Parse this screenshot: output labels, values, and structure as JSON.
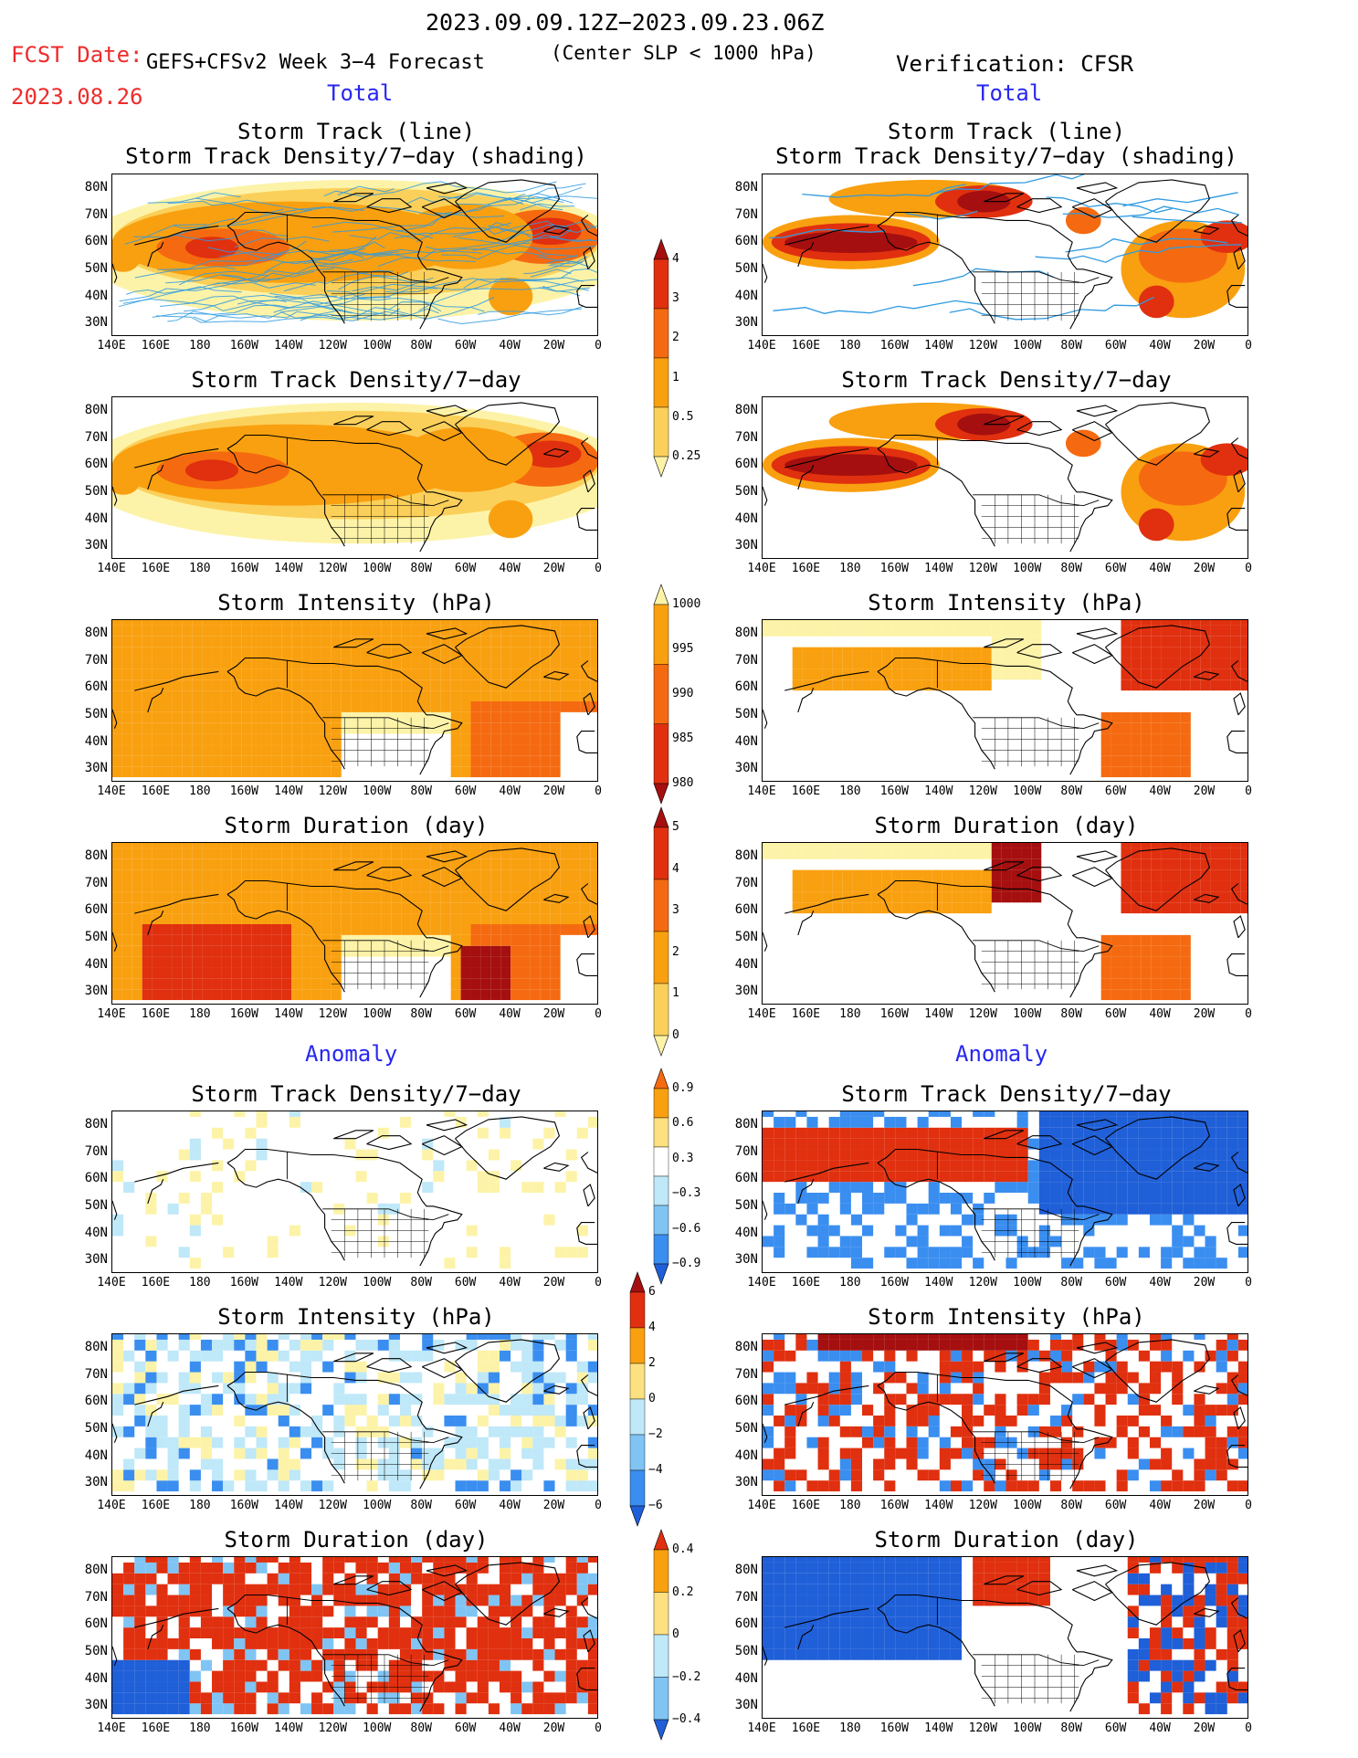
{
  "header": {
    "period": "2023.09.09.12Z−2023.09.23.06Z",
    "fcst_label": "FCST Date:",
    "fcst_date": "2023.08.26",
    "model": "GEFS+CFSv2 Week 3−4 Forecast",
    "criterion": "(Center SLP < 1000 hPa)",
    "verification": "Verification: CFSR"
  },
  "sections": {
    "total": "Total",
    "anomaly": "Anomaly"
  },
  "panel_titles": {
    "track_line": "Storm Track (line)",
    "track_shade": "Storm Track Density/7−day (shading)",
    "density": "Storm Track Density/7−day",
    "intensity": "Storm Intensity (hPa)",
    "duration": "Storm Duration (day)"
  },
  "axes": {
    "lat_labels": [
      "80N",
      "70N",
      "60N",
      "50N",
      "40N",
      "30N"
    ],
    "lon_labels": [
      "140E",
      "160E",
      "180",
      "160W",
      "140W",
      "120W",
      "100W",
      "80W",
      "60W",
      "40W",
      "20W",
      "0"
    ]
  },
  "colorbars": {
    "density_total": {
      "labels": [
        "4",
        "3",
        "2",
        "1",
        "0.5",
        "0.25"
      ],
      "colors": [
        "#a50f0f",
        "#e0300f",
        "#f56a10",
        "#f9a010",
        "#fbd05a",
        "#fdf3a8"
      ]
    },
    "intensity_total": {
      "labels": [
        "1000",
        "995",
        "990",
        "985",
        "980"
      ],
      "colors": [
        "#fdf3a8",
        "#f9a010",
        "#f56a10",
        "#e0300f",
        "#a50f0f"
      ]
    },
    "duration_total": {
      "labels": [
        "5",
        "4",
        "3",
        "2",
        "1",
        "0"
      ],
      "colors": [
        "#a50f0f",
        "#e0300f",
        "#f56a10",
        "#f9a010",
        "#fbd05a",
        "#fdf3a8"
      ]
    },
    "density_anom": {
      "labels": [
        "0.9",
        "0.6",
        "0.3",
        "−0.3",
        "−0.6",
        "−0.9"
      ],
      "colors": [
        "#f56a10",
        "#f9a010",
        "#fde080",
        "#ffffff",
        "#bfe8f8",
        "#80c4f4",
        "#3a8ef0",
        "#1f5fd8"
      ]
    },
    "intensity_anom": {
      "labels": [
        "6",
        "4",
        "2",
        "0",
        "−2",
        "−4",
        "−6"
      ],
      "colors": [
        "#a50f0f",
        "#e0300f",
        "#f9a010",
        "#fde080",
        "#bfe8f8",
        "#80c4f4",
        "#3a8ef0",
        "#1f5fd8"
      ]
    },
    "duration_anom": {
      "labels": [
        "0.4",
        "0.2",
        "0",
        "−0.2",
        "−0.4"
      ],
      "colors": [
        "#e0300f",
        "#f9a010",
        "#fde080",
        "#bfe8f8",
        "#80c4f4",
        "#1f5fd8"
      ]
    }
  }
}
